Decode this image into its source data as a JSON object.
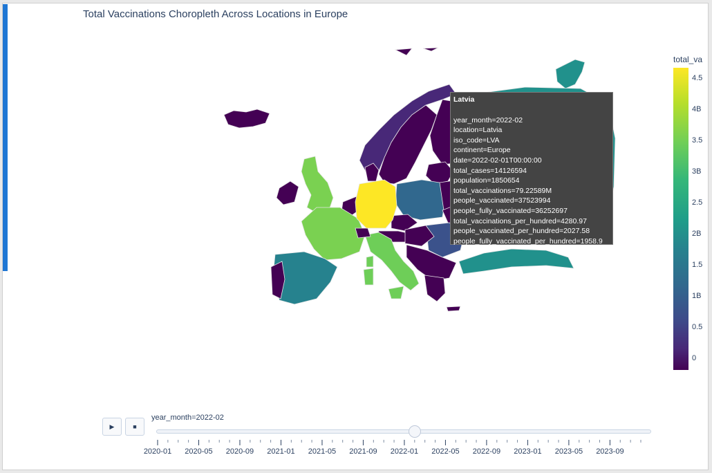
{
  "title": "Total Vaccinations Choropleth Across Locations in Europe",
  "tooltip": {
    "title": "Latvia",
    "lines": [
      "year_month=2022-02",
      "location=Latvia",
      "iso_code=LVA",
      "continent=Europe",
      "date=2022-02-01T00:00:00",
      "total_cases=14126594",
      "population=1850654",
      "total_vaccinations=79.22589M",
      "people_vaccinated=37523994",
      "people_fully_vaccinated=36252697",
      "total_vaccinations_per_hundred=4280.97",
      "people_vaccinated_per_hundred=2027.58",
      "people_fully_vaccinated_per_hundred=1958.9"
    ]
  },
  "colorbar": {
    "title": "total_va",
    "ticks": [
      "4.5",
      "4B",
      "3.5",
      "3B",
      "2.5",
      "2B",
      "1.5",
      "1B",
      "0.5",
      "0"
    ],
    "colors": [
      "#fde725",
      "#b5de2b",
      "#6ece58",
      "#35b779",
      "#1f9e89",
      "#26828e",
      "#31688e",
      "#3e4989",
      "#482878",
      "#440154"
    ]
  },
  "slider": {
    "label": "year_month=2022-02",
    "play_icon": "play-icon",
    "stop_icon": "stop-icon",
    "labels": [
      "2020-01",
      "2020-05",
      "2020-09",
      "2021-01",
      "2021-05",
      "2021-09",
      "2022-01",
      "2022-05",
      "2022-09",
      "2023-01",
      "2023-05",
      "2023-09"
    ],
    "months_total": 47,
    "current_month_index": 25
  },
  "chart_data": {
    "type": "choropleth",
    "title": "Total Vaccinations Choropleth Across Locations in Europe",
    "frame": "year_month=2022-02",
    "colorscale": "viridis",
    "color_range_billions": [
      0,
      4.8
    ],
    "regions": [
      {
        "name": "Germany",
        "fill": "#fde725"
      },
      {
        "name": "France",
        "fill": "#7ad151"
      },
      {
        "name": "United Kingdom",
        "fill": "#7ad151"
      },
      {
        "name": "Italy",
        "fill": "#6ece58"
      },
      {
        "name": "Spain",
        "fill": "#26828e"
      },
      {
        "name": "Poland",
        "fill": "#31688e"
      },
      {
        "name": "Turkey",
        "fill": "#21918c"
      },
      {
        "name": "Russia",
        "fill": "#21918c"
      },
      {
        "name": "Svalbard",
        "fill": "#21918c"
      },
      {
        "name": "Sweden",
        "fill": "#440154"
      },
      {
        "name": "Norway",
        "fill": "#482878"
      },
      {
        "name": "Finland",
        "fill": "#440154"
      },
      {
        "name": "Iceland",
        "fill": "#440154"
      },
      {
        "name": "Ireland",
        "fill": "#440154"
      },
      {
        "name": "Portugal",
        "fill": "#440154"
      },
      {
        "name": "Romania",
        "fill": "#3b528b"
      },
      {
        "name": "Greece",
        "fill": "#440154"
      },
      {
        "name": "Baltics",
        "fill": "#440154"
      },
      {
        "name": "Benelux",
        "fill": "#440154"
      },
      {
        "name": "Denmark",
        "fill": "#440154"
      },
      {
        "name": "Czechia",
        "fill": "#440154"
      },
      {
        "name": "Austria",
        "fill": "#440154"
      },
      {
        "name": "Hungary",
        "fill": "#440154"
      },
      {
        "name": "Balkans",
        "fill": "#440154"
      },
      {
        "name": "Belarus",
        "fill": "#440154"
      },
      {
        "name": "Ukraine",
        "fill": "#440154"
      },
      {
        "name": "Switzerland",
        "fill": "#440154"
      },
      {
        "name": "Sardinia",
        "fill": "#6ece58"
      },
      {
        "name": "Corsica",
        "fill": "#6ece58"
      },
      {
        "name": "Sicily",
        "fill": "#6ece58"
      },
      {
        "name": "Crete",
        "fill": "#440154"
      },
      {
        "name": "Arctic islands",
        "fill": "#440154"
      }
    ]
  }
}
